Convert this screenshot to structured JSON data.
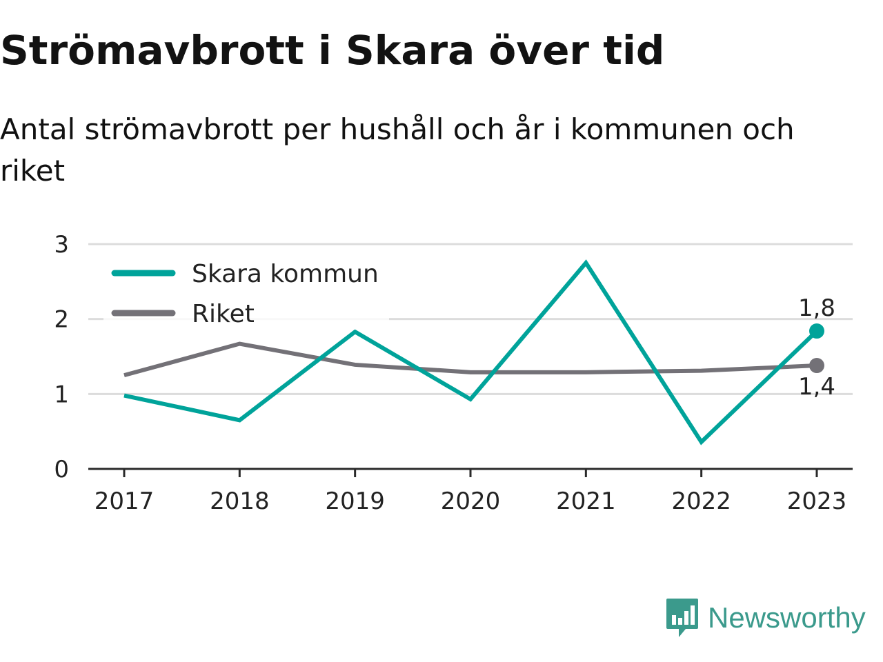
{
  "title": "Strömavbrott i Skara över tid",
  "subtitle": "Antal strömavbrott per hushåll och år i kommunen och riket",
  "brand": {
    "name": "Newsworthy",
    "color": "#3b9a8c",
    "icon": "newsworthy-chart-bubble-icon"
  },
  "chart_data": {
    "type": "line",
    "categories": [
      "2017",
      "2018",
      "2019",
      "2020",
      "2021",
      "2022",
      "2023"
    ],
    "series": [
      {
        "name": "Skara kommun",
        "color": "#00a39a",
        "values": [
          0.98,
          0.65,
          1.83,
          0.93,
          2.75,
          0.36,
          1.84
        ]
      },
      {
        "name": "Riket",
        "color": "#737177",
        "values": [
          1.25,
          1.67,
          1.39,
          1.29,
          1.29,
          1.31,
          1.38
        ]
      }
    ],
    "ylim": [
      0,
      3
    ],
    "yticks": [
      "0",
      "1",
      "2",
      "3"
    ],
    "grid": true,
    "legend": "top-left",
    "end_labels": {
      "Skara kommun": "1,8",
      "Riket": "1,4"
    },
    "axis_color": "#2a2a2a",
    "grid_color": "#dcdcdc"
  }
}
